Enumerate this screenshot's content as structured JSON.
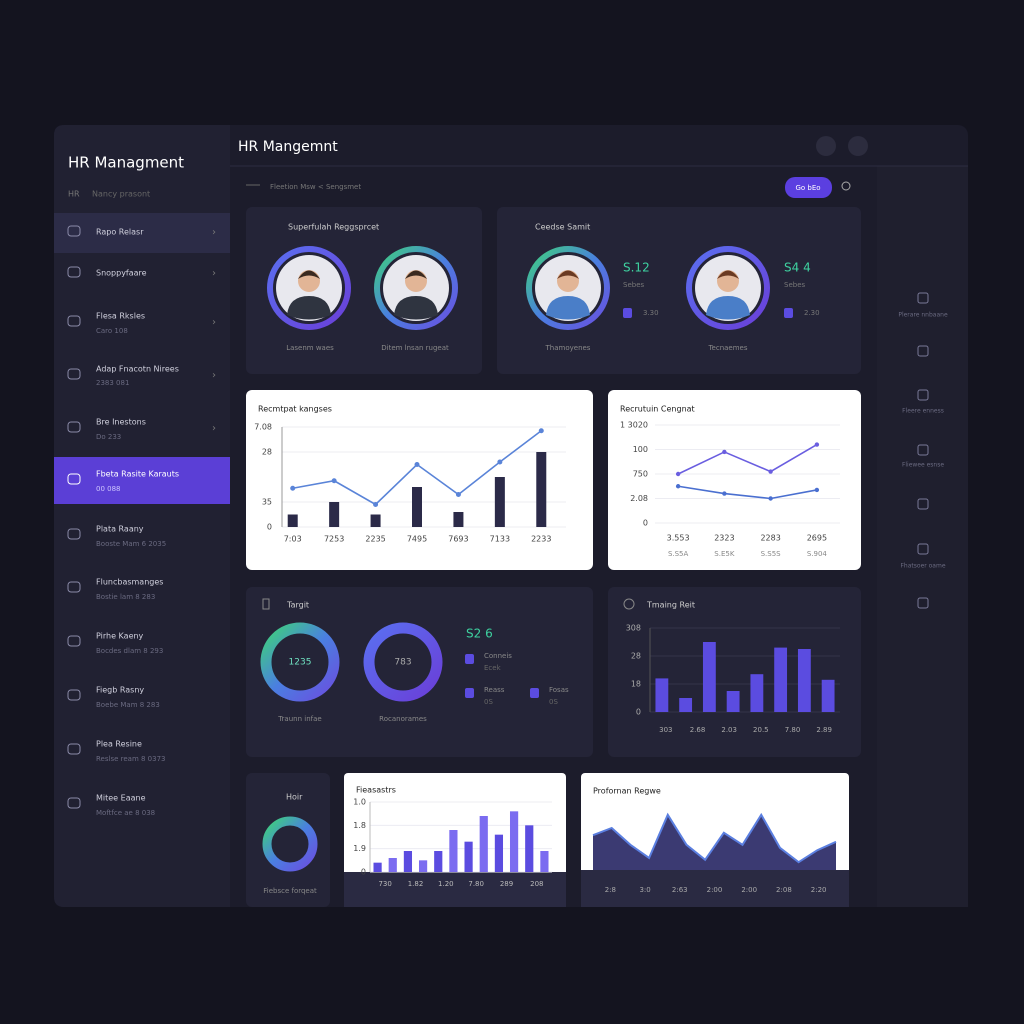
{
  "sidebar": {
    "title": "HR Managment",
    "code": "HR",
    "subtitle": "Nancy prasont",
    "items": [
      {
        "label": "Rapo Relasr"
      },
      {
        "label": "Snoppyfaare"
      },
      {
        "label": "Flesa Rksles",
        "sub": "Caro 108"
      },
      {
        "label": "Adap Fnacotn Nirees",
        "sub": "2383 081"
      },
      {
        "label": "Bre Inestons",
        "sub": "Do 233"
      },
      {
        "label": "Fbeta Rasite Karauts",
        "sub": "00 088"
      },
      {
        "label": "Plata Raany",
        "sub": "Booste Mam 6 2035"
      },
      {
        "label": "Fluncbasmanges",
        "sub": "Bostie lam 8 283"
      },
      {
        "label": "Pirhe Kaeny",
        "sub": "Bocdes dlam 8 293"
      },
      {
        "label": "Fiegb Rasny",
        "sub": "Boebe Mam 8 283"
      },
      {
        "label": "Plea Resine",
        "sub": "Reslse ream 8 0373"
      },
      {
        "label": "Mitee Eaane",
        "sub": "Moftfce ae 8 038"
      }
    ]
  },
  "header": {
    "title": "HR Mangemnt",
    "breadcrumb": "Fleetion Msw < Sengsmet",
    "button": "Go bEo"
  },
  "rail": [
    "Plerare nnbaane",
    "Fleere enness",
    "Fliewee esnse",
    "Fhatsoer oame"
  ],
  "panels": {
    "team": {
      "title": "Superfulah Reggsprcet",
      "people": [
        "Lasenm waes",
        "Ditem lnsan rugeat"
      ]
    },
    "staff": {
      "title": "Ceedse Samit",
      "people": [
        {
          "name": "Thamoyenes",
          "value": "S.12",
          "label": "Sebes",
          "count": "3.30"
        },
        {
          "name": "Tecnaemes",
          "value": "S4 4",
          "label": "Sebes",
          "count": "2.30"
        }
      ]
    },
    "recruitment": {
      "title": "Recmtpat kangses",
      "type": "bar_line",
      "categories": [
        "7:03",
        "7253",
        "2235",
        "7495",
        "7693",
        "7133",
        "2233"
      ],
      "bar_color": "#2b2a48",
      "bars": [
        0.5,
        1.0,
        0.5,
        1.6,
        0.6,
        2.0,
        3.0
      ],
      "line_color": "#5a84d8",
      "line": [
        1.55,
        1.85,
        0.9,
        2.5,
        1.3,
        2.6,
        3.85
      ],
      "ylim": [
        0,
        4
      ],
      "yticks": [
        {
          "value": 4,
          "label": "7.08"
        },
        {
          "value": 3,
          "label": "28"
        },
        {
          "value": 1,
          "label": "35"
        },
        0
      ]
    },
    "engagement": {
      "title": "Recrutuin Cengnat",
      "type": "line",
      "categories": [
        "3.553",
        "2323",
        "2283",
        "2695"
      ],
      "sublabels": [
        "S.S5A",
        "S.E5K",
        "S.S5S",
        "S.904"
      ],
      "series": [
        {
          "color": "#6a5ee0",
          "values": [
            2.0,
            2.9,
            2.1,
            3.2
          ]
        },
        {
          "color": "#4a6fd0",
          "values": [
            1.5,
            1.2,
            1.0,
            1.35
          ]
        }
      ],
      "ylim": [
        0,
        4
      ],
      "yticks": [
        {
          "value": 4,
          "label": "1 3020"
        },
        {
          "value": 3,
          "label": "100"
        },
        {
          "value": 2,
          "label": "750"
        },
        {
          "value": 1,
          "label": "2.08"
        },
        0
      ]
    },
    "targets": {
      "title": "Targit",
      "donuts": [
        {
          "center": "1235",
          "label": "Traunn infae"
        },
        {
          "center": "783",
          "label": "Rocanorames"
        }
      ],
      "value": "S2 6",
      "stats": [
        {
          "label": "Conneis",
          "sub": "Ecek"
        },
        {
          "label": "Reass",
          "sub": "0S"
        },
        {
          "label": "Fosas",
          "sub": "0S"
        }
      ]
    },
    "training": {
      "title": "Tmaing Reit",
      "type": "bar",
      "color": "#5b4ce0",
      "values": [
        1.2,
        0.5,
        2.5,
        0.75,
        1.35,
        2.3,
        2.25,
        1.15
      ],
      "xlabels": [
        "303",
        "2.68",
        "2.03",
        "20.5",
        "7.80",
        "2.89"
      ],
      "ylim": [
        0,
        3
      ],
      "yticks": [
        {
          "value": 3,
          "label": "308"
        },
        {
          "value": 2,
          "label": "28"
        },
        {
          "value": 1,
          "label": "18"
        },
        0
      ]
    },
    "hours": {
      "title": "Hoir",
      "label": "Fiebsce forqeat"
    },
    "forecasts": {
      "title": "Fieasastrs",
      "type": "bar",
      "colors": [
        "#5b4ce0",
        "#7b6cf0"
      ],
      "values": [
        0.4,
        0.6,
        0.9,
        0.5,
        0.9,
        1.8,
        1.3,
        2.4,
        1.6,
        2.6,
        2.0,
        0.9
      ],
      "xlabels": [
        "730",
        "1.82",
        "1.20",
        "7.80",
        "289",
        "208"
      ],
      "ylim": [
        0,
        3
      ],
      "yticks": [
        {
          "value": 3,
          "label": "1.0"
        },
        {
          "value": 2,
          "label": "1.8"
        },
        {
          "value": 1,
          "label": "1.9"
        },
        0
      ]
    },
    "performance": {
      "title": "Profornan Regwe",
      "type": "area",
      "color": "#3b3a72",
      "line_color": "#5b7fe0",
      "values": [
        5.8,
        7,
        4.2,
        2,
        9.2,
        4.2,
        1.7,
        6.2,
        4.2,
        9.2,
        3.7,
        1.3,
        3.3,
        4.7
      ],
      "ylim": [
        0,
        10
      ],
      "xlabels": [
        "2:8",
        "3:0",
        "2:63",
        "2:00",
        "2:00",
        "2:08",
        "2:20"
      ]
    }
  }
}
